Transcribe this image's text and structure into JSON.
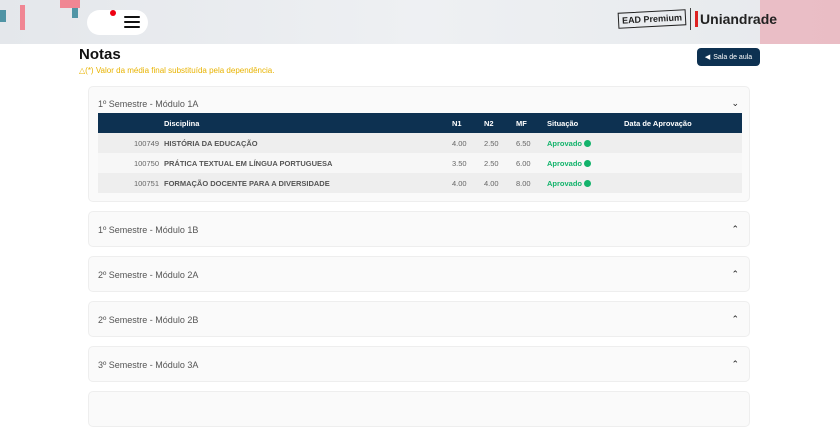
{
  "header": {
    "logo_ead": "EAD Premium",
    "logo_brand": "Uniandrade"
  },
  "page": {
    "title": "Notas",
    "warning": "△(*) Valor da média final substituída pela dependência.",
    "back_button": "Sala de aula"
  },
  "table_headers": {
    "disciplina": "Disciplina",
    "n1": "N1",
    "n2": "N2",
    "mf": "MF",
    "situacao": "Situação",
    "data": "Data de Aprovação"
  },
  "panels": [
    {
      "title": "1º Semestre - Módulo 1A",
      "expanded": true,
      "rows": [
        {
          "code": "100749",
          "name": "HISTÓRIA DA EDUCAÇÃO",
          "n1": "4.00",
          "n2": "2.50",
          "mf": "6.50",
          "status": "Aprovado",
          "date": ""
        },
        {
          "code": "100750",
          "name": "PRÁTICA TEXTUAL EM LÍNGUA PORTUGUESA",
          "n1": "3.50",
          "n2": "2.50",
          "mf": "6.00",
          "status": "Aprovado",
          "date": ""
        },
        {
          "code": "100751",
          "name": "FORMAÇÃO DOCENTE PARA A DIVERSIDADE",
          "n1": "4.00",
          "n2": "4.00",
          "mf": "8.00",
          "status": "Aprovado",
          "date": ""
        }
      ]
    },
    {
      "title": "1º Semestre - Módulo 1B",
      "expanded": false
    },
    {
      "title": "2º Semestre - Módulo 2A",
      "expanded": false
    },
    {
      "title": "2º Semestre - Módulo 2B",
      "expanded": false
    },
    {
      "title": "3º Semestre - Módulo 3A",
      "expanded": false
    }
  ],
  "colors": {
    "primary": "#0d3151",
    "approved": "#12b36b",
    "warning": "#e8b300"
  }
}
